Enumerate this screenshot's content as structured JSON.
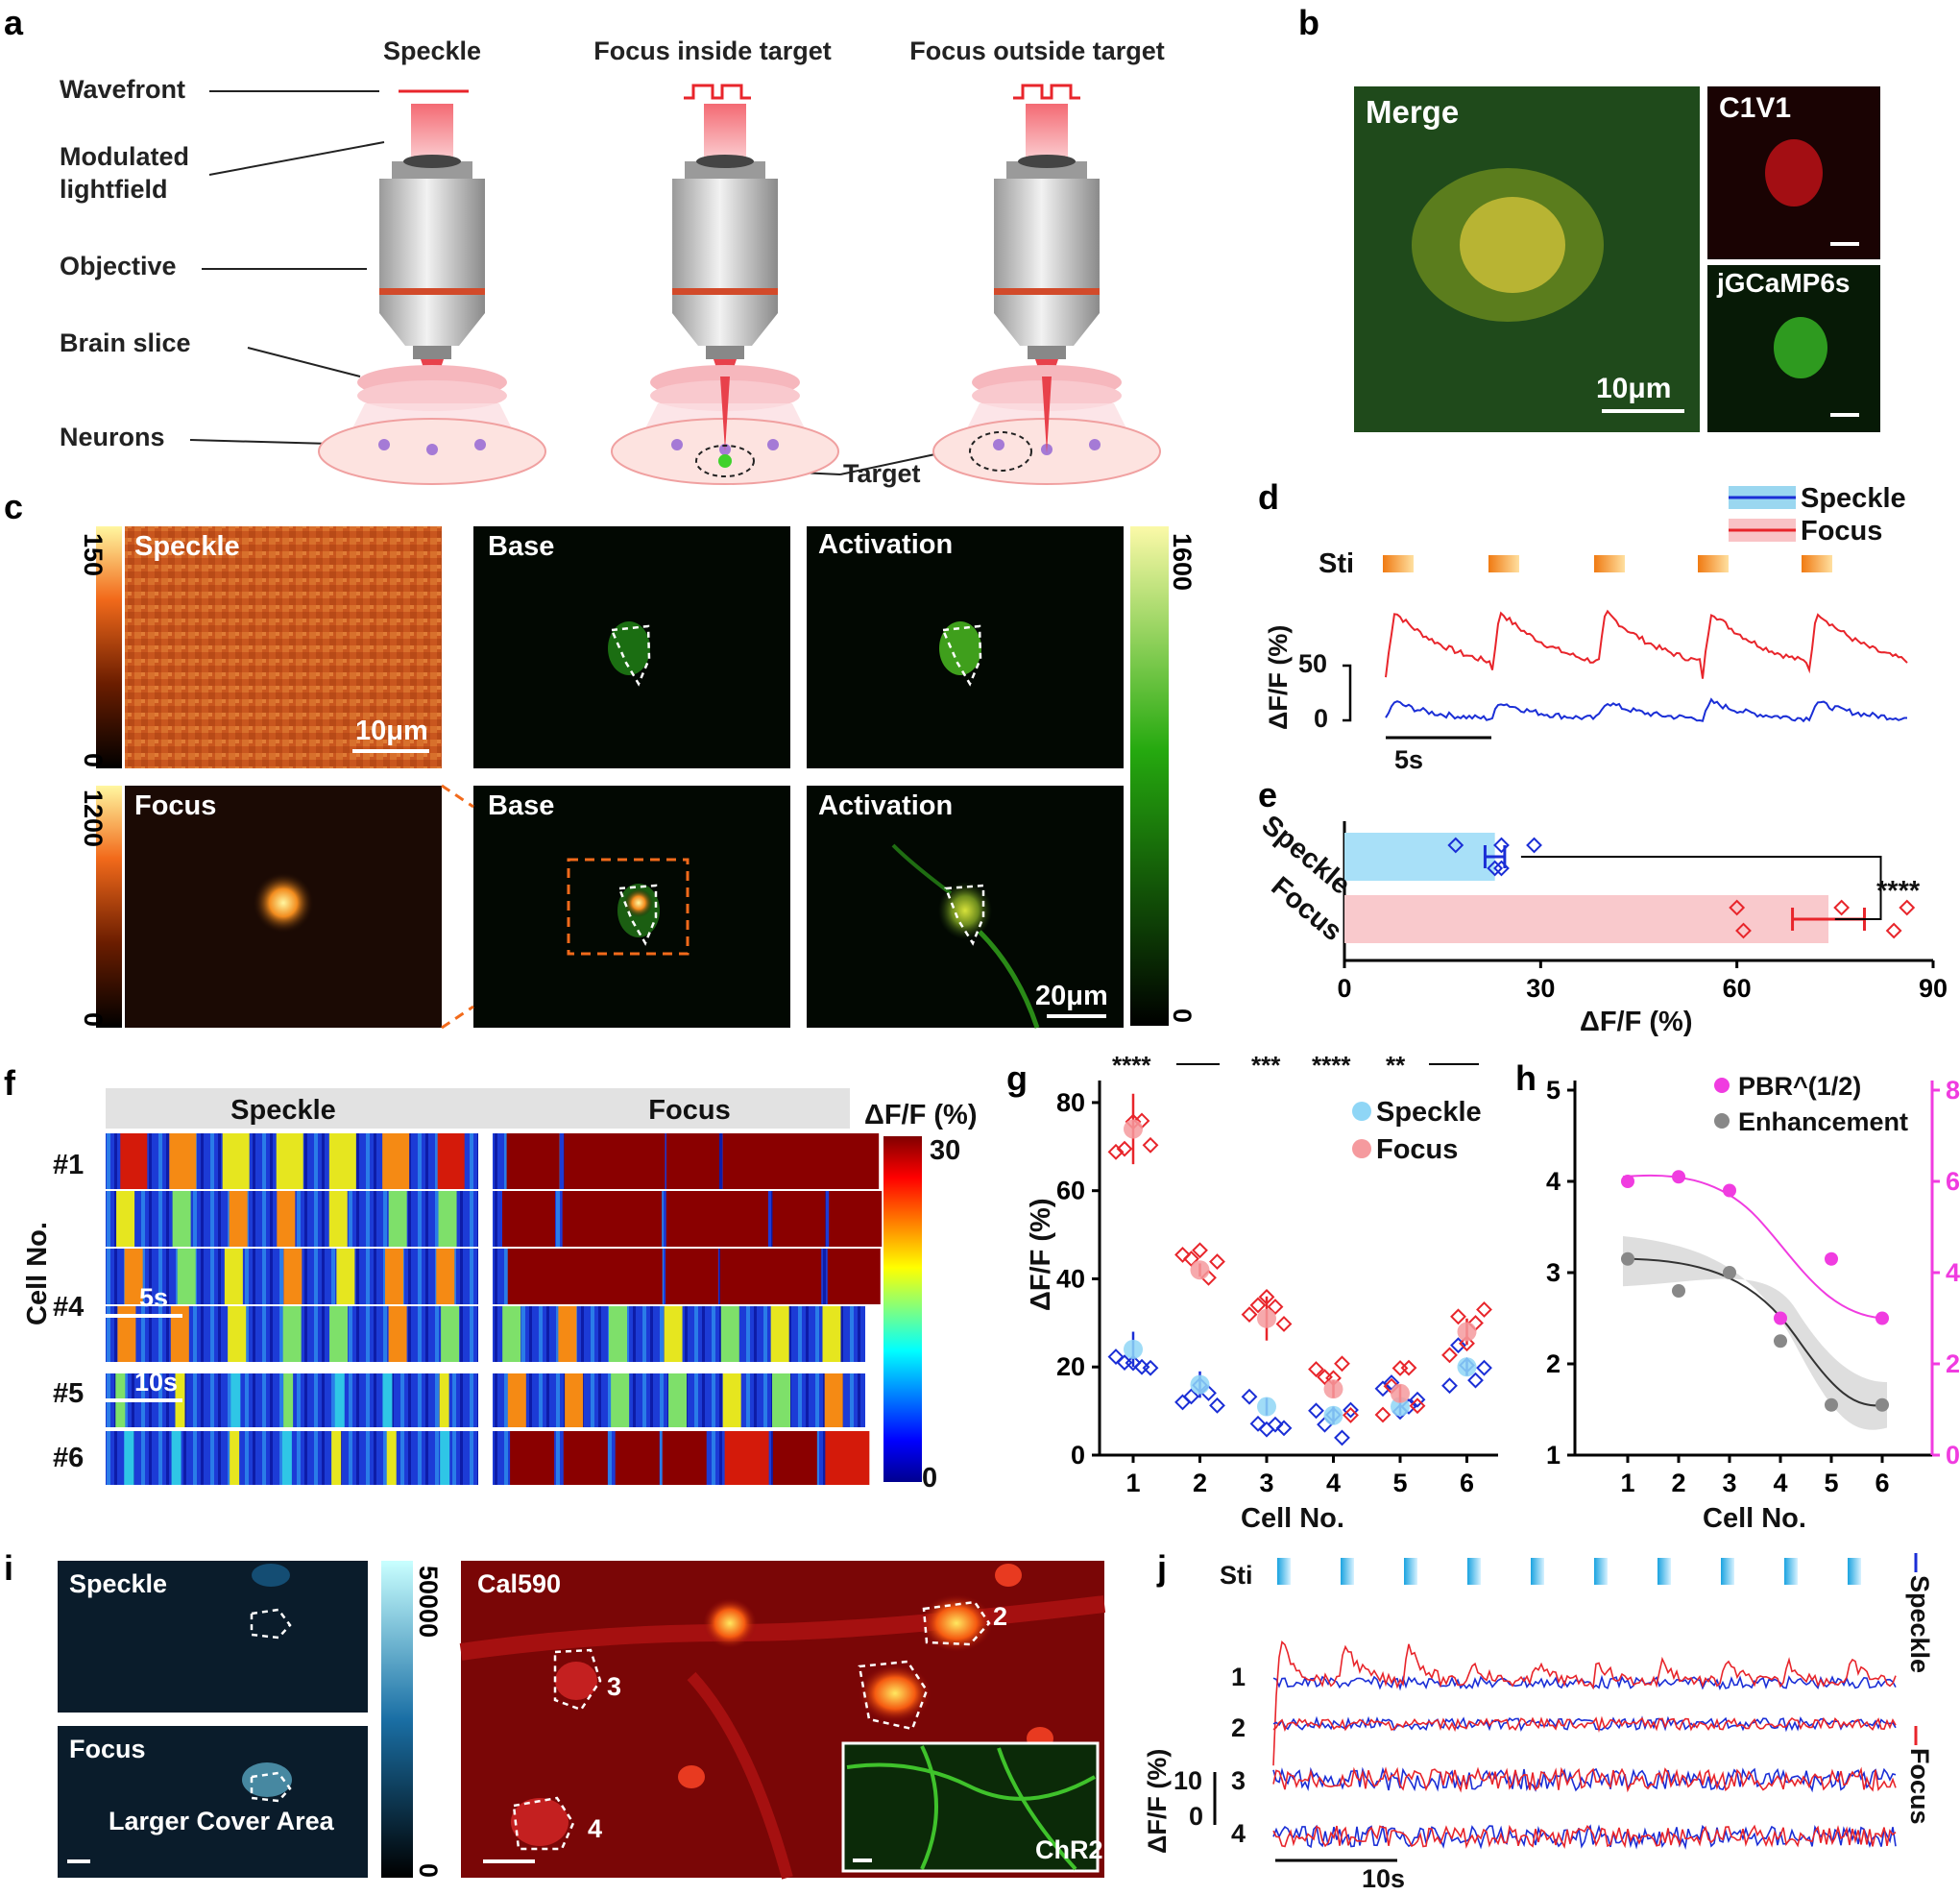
{
  "panels": {
    "a": "a",
    "b": "b",
    "c": "c",
    "d": "d",
    "e": "e",
    "f": "f",
    "g": "g",
    "h": "h",
    "i": "i",
    "j": "j"
  },
  "a": {
    "columns": [
      "Speckle",
      "Focus inside target",
      "Focus outside target"
    ],
    "labels": [
      "Wavefront",
      "Modulated",
      "lightfield",
      "Objective",
      "Brain slice",
      "Neurons"
    ],
    "target": "Target"
  },
  "b": {
    "merge": "Merge",
    "c1v1": "C1V1",
    "gcamp": "jGCaMP6s",
    "scale": "10μm"
  },
  "c": {
    "speckle": "Speckle",
    "focus": "Focus",
    "base": "Base",
    "activation": "Activation",
    "scale1": "10μm",
    "scale2": "20μm",
    "cbar1": [
      "150",
      "0"
    ],
    "cbar2": [
      "1200",
      "0"
    ],
    "cbar3": [
      "1600",
      "0"
    ]
  },
  "d": {
    "legend": [
      "Speckle",
      "Focus"
    ],
    "sti": "Sti",
    "ylabel": "ΔF/F (%)",
    "y50": "50",
    "y0": "0",
    "time": "5s",
    "colors": {
      "speckle": "#1a2ed6",
      "focus": "#e8252b"
    }
  },
  "e": {
    "chart_data": {
      "type": "bar",
      "categories": [
        "Speckle",
        "Focus"
      ],
      "values": [
        23,
        74
      ],
      "errors": [
        1.5,
        5.5
      ],
      "points": {
        "Speckle": [
          17,
          23,
          24,
          24,
          29
        ],
        "Focus": [
          60,
          61,
          76,
          84,
          86
        ]
      },
      "xlabel": "ΔF/F (%)",
      "xlim": [
        0,
        90
      ],
      "xticks": [
        "0",
        "30",
        "60",
        "90"
      ],
      "significance": "****"
    }
  },
  "f": {
    "speckle": "Speckle",
    "focus": "Focus",
    "unit": "ΔF/F (%)",
    "cbar": [
      "30",
      "0"
    ],
    "ylabel": "Cell No.",
    "cells": [
      "#1",
      "#4",
      "#5",
      "#6"
    ],
    "s5": "5s",
    "s10": "10s"
  },
  "g": {
    "chart_data": {
      "type": "scatter",
      "x": [
        1,
        2,
        3,
        4,
        5,
        6
      ],
      "series": [
        {
          "name": "Speckle",
          "mean": [
            24,
            16,
            11,
            9,
            11,
            20
          ],
          "err": [
            4,
            3,
            2,
            2,
            2,
            2
          ]
        },
        {
          "name": "Focus",
          "mean": [
            74,
            42,
            31,
            15,
            14,
            28
          ],
          "err": [
            8,
            1.5,
            5,
            2,
            2,
            3
          ]
        }
      ],
      "ylabel": "ΔF/F (%)",
      "xlabel": "Cell No.",
      "ylim": [
        0,
        85
      ],
      "yticks": [
        "0",
        "20",
        "40",
        "60",
        "80"
      ],
      "xticks": [
        "1",
        "2",
        "3",
        "4",
        "5",
        "6"
      ],
      "stars": [
        "****",
        "***",
        "****",
        "**"
      ]
    }
  },
  "h": {
    "chart_data": {
      "type": "scatter",
      "x": [
        1,
        2,
        3,
        4,
        5,
        6
      ],
      "series": [
        {
          "name": "PBR^(1/2)",
          "values": [
            6.0,
            6.1,
            5.8,
            3.0,
            4.3,
            3.0
          ]
        },
        {
          "name": "Enhancement",
          "values": [
            3.15,
            2.8,
            3.0,
            2.25,
            1.55,
            1.55
          ]
        }
      ],
      "xlabel": "Cell No.",
      "ylim_left": [
        1,
        5
      ],
      "ylim_right": [
        0,
        8
      ],
      "yticks_left": [
        "1",
        "2",
        "3",
        "4",
        "5"
      ],
      "yticks_right": [
        "0",
        "2",
        "4",
        "6",
        "8"
      ],
      "xticks": [
        "1",
        "2",
        "3",
        "4",
        "5",
        "6"
      ]
    }
  },
  "i": {
    "speckle": "Speckle",
    "focus": "Focus",
    "cover": "Larger Cover Area",
    "cbar": [
      "50000",
      "0"
    ],
    "cal": "Cal590",
    "chr2": "ChR2",
    "cells": [
      "1",
      "2",
      "3",
      "4"
    ]
  },
  "j": {
    "sti": "Sti",
    "rows": [
      "1",
      "2",
      "3",
      "4"
    ],
    "ylabel": "ΔF/F (%)",
    "scale": "10",
    "zero": "0",
    "time": "10s",
    "legend": [
      "Speckle",
      "Focus"
    ]
  }
}
